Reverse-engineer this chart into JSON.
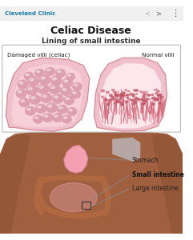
{
  "title": "Celiac Disease",
  "subtitle": "Lining of small intestine",
  "header_text": "Cleveland Clinic",
  "left_label": "Damaged villi (celiac)",
  "right_label": "Normal villi",
  "labels": [
    "Stomach",
    "Small intestine",
    "Large intestine"
  ],
  "bg_color": "#ffffff",
  "header_color": "#1a7aad",
  "title_color": "#111111",
  "body_skin_color": "#a06040",
  "body_skin_light": "#b87050",
  "stomach_color": "#f4a0b0",
  "large_int_color": "#b06840",
  "small_int_color": "#f0a8b8",
  "villi_base_color": "#f2b8c0",
  "villi_border_color": "#e8909a",
  "bubble_color": "#dda0b0",
  "bubble_edge": "#c07888",
  "hair_color": "#d06878",
  "hair_top_color": "#c05868",
  "blue_highlight": "#c8d8e8",
  "panel_border": "#bbbbbb",
  "annot_line_color": "#888888",
  "annot_text_color": "#222222",
  "small_int_bold_color": "#111111"
}
